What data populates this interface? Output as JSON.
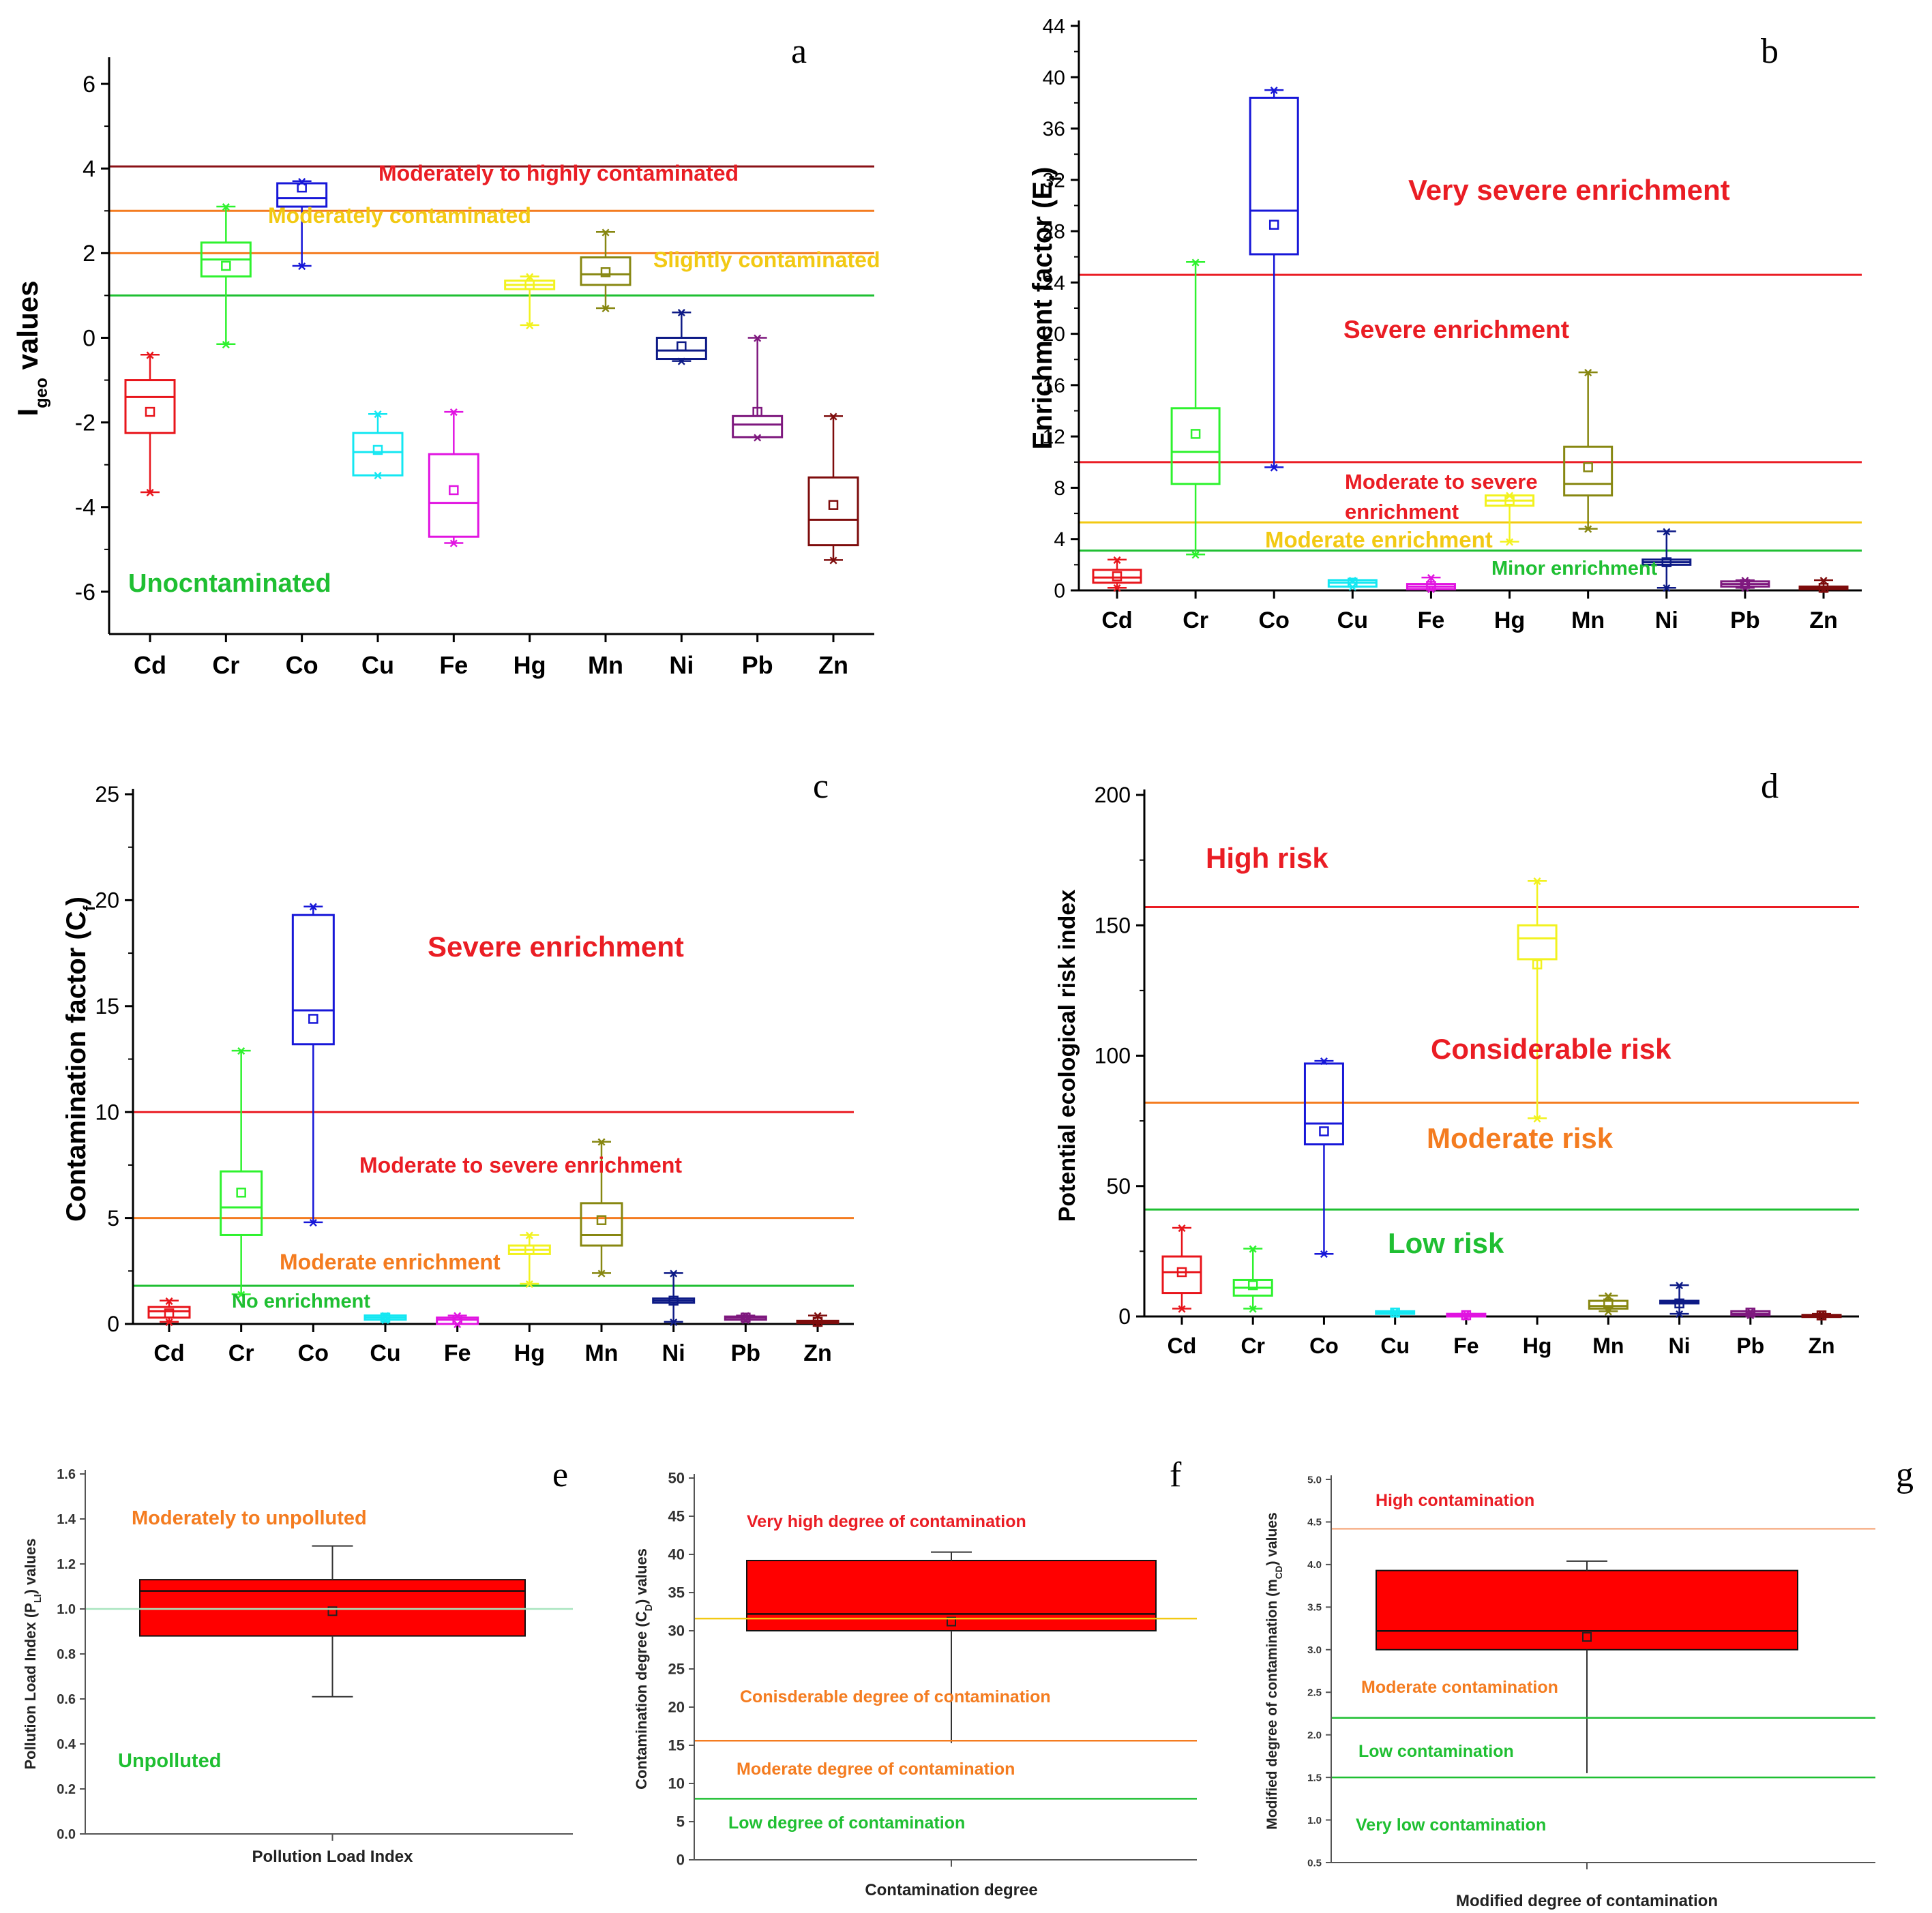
{
  "metals": [
    "Cd",
    "Cr",
    "Co",
    "Cu",
    "Fe",
    "Hg",
    "Mn",
    "Ni",
    "Pb",
    "Zn"
  ],
  "colors": {
    "Cd": "#e8151b",
    "Cr": "#2ef22e",
    "Co": "#1717d8",
    "Cu": "#14e7f2",
    "Fe": "#e114e1",
    "Hg": "#f2f21e",
    "Mn": "#878711",
    "Ni": "#0d1a86",
    "Pb": "#7e187e",
    "Zn": "#7e0c0c",
    "red": "#ea1d24",
    "orange": "#f47c20",
    "yellow": "#f2c913",
    "green": "#1fbf32",
    "darkred": "#8a1116",
    "peach": "#f7b089"
  },
  "chart_data": [
    {
      "id": "a",
      "type": "box",
      "panel_label": "a",
      "ylabel_main": "I",
      "ylabel_sub": "geo",
      "ylabel_tail": " values",
      "ylim": [
        -7,
        6.5
      ],
      "yticks": [
        -6,
        -4,
        -2,
        0,
        2,
        4,
        6
      ],
      "ytick_labels": [
        "-6",
        "-4",
        "-2",
        "0",
        "2",
        "4",
        "6"
      ],
      "boxes": [
        {
          "cat": "Cd",
          "q1": -2.25,
          "median": -1.4,
          "q3": -1.0,
          "mean": -1.75,
          "min": -3.65,
          "max": -0.4
        },
        {
          "cat": "Cr",
          "q1": 1.45,
          "median": 1.85,
          "q3": 2.25,
          "mean": 1.7,
          "min": -0.15,
          "max": 3.1
        },
        {
          "cat": "Co",
          "q1": 3.1,
          "median": 3.3,
          "q3": 3.65,
          "mean": 3.55,
          "min": 1.7,
          "max": 3.7
        },
        {
          "cat": "Cu",
          "q1": -3.25,
          "median": -2.7,
          "q3": -2.25,
          "mean": -2.65,
          "min": -3.25,
          "max": -1.8
        },
        {
          "cat": "Fe",
          "q1": -4.7,
          "median": -3.9,
          "q3": -2.75,
          "mean": -3.6,
          "min": -4.85,
          "max": -1.75
        },
        {
          "cat": "Hg",
          "q1": 1.15,
          "median": 1.25,
          "q3": 1.35,
          "mean": 1.25,
          "min": 0.3,
          "max": 1.45
        },
        {
          "cat": "Mn",
          "q1": 1.25,
          "median": 1.5,
          "q3": 1.9,
          "mean": 1.55,
          "min": 0.7,
          "max": 2.5
        },
        {
          "cat": "Ni",
          "q1": -0.5,
          "median": -0.3,
          "q3": 0.0,
          "mean": -0.2,
          "min": -0.55,
          "max": 0.6
        },
        {
          "cat": "Pb",
          "q1": -2.35,
          "median": -2.05,
          "q3": -1.85,
          "mean": -1.75,
          "min": -2.35,
          "max": 0.0
        },
        {
          "cat": "Zn",
          "q1": -4.9,
          "median": -4.3,
          "q3": -3.3,
          "mean": -3.95,
          "min": -5.25,
          "max": -1.85
        }
      ],
      "thresholds": [
        {
          "value": 4.05,
          "color": "#8a1116"
        },
        {
          "value": 3.0,
          "color": "#f47c20"
        },
        {
          "value": 2.0,
          "color": "#f47c20"
        },
        {
          "value": 1.0,
          "color": "#1fbf32"
        }
      ],
      "annotations": [
        {
          "text": "Moderately to highly contaminated",
          "color": "#ea1d24"
        },
        {
          "text": "Moderately contaminated",
          "color": "#f2c913"
        },
        {
          "text": "Slightly contaminated",
          "color": "#f2c913"
        },
        {
          "text": "Unocntaminated",
          "color": "#1fbf32"
        }
      ]
    },
    {
      "id": "b",
      "type": "box",
      "panel_label": "b",
      "ylabel_main": "Enrichment factor (E",
      "ylabel_sub": "f",
      "ylabel_tail": ")",
      "ylim": [
        0,
        44
      ],
      "yticks": [
        0,
        4,
        8,
        12,
        16,
        20,
        24,
        28,
        32,
        36,
        40,
        44
      ],
      "ytick_labels": [
        "0",
        "4",
        "8",
        "12",
        "16",
        "20",
        "24",
        "28",
        "32",
        "36",
        "40",
        "44"
      ],
      "boxes": [
        {
          "cat": "Cd",
          "q1": 0.6,
          "median": 1.0,
          "q3": 1.6,
          "mean": 1.1,
          "min": 0.2,
          "max": 2.4
        },
        {
          "cat": "Cr",
          "q1": 8.3,
          "median": 10.8,
          "q3": 14.2,
          "mean": 12.2,
          "min": 2.8,
          "max": 25.6
        },
        {
          "cat": "Co",
          "q1": 26.2,
          "median": 29.6,
          "q3": 38.4,
          "mean": 28.5,
          "min": 9.6,
          "max": 39.0
        },
        {
          "cat": "Cu",
          "q1": 0.3,
          "median": 0.6,
          "q3": 0.8,
          "mean": 0.6,
          "min": 0.3,
          "max": 0.8
        },
        {
          "cat": "Fe",
          "q1": 0.1,
          "median": 0.3,
          "q3": 0.5,
          "mean": 0.35,
          "min": 0.1,
          "max": 1.0
        },
        {
          "cat": "Hg",
          "q1": 6.6,
          "median": 7.0,
          "q3": 7.4,
          "mean": 7.0,
          "min": 3.8,
          "max": 7.4
        },
        {
          "cat": "Mn",
          "q1": 7.4,
          "median": 8.3,
          "q3": 11.2,
          "mean": 9.6,
          "min": 4.8,
          "max": 17.0
        },
        {
          "cat": "Ni",
          "q1": 2.0,
          "median": 2.2,
          "q3": 2.4,
          "mean": 2.2,
          "min": 0.2,
          "max": 4.6
        },
        {
          "cat": "Pb",
          "q1": 0.3,
          "median": 0.5,
          "q3": 0.7,
          "mean": 0.5,
          "min": 0.2,
          "max": 0.8
        },
        {
          "cat": "Zn",
          "q1": 0.1,
          "median": 0.2,
          "q3": 0.3,
          "mean": 0.2,
          "min": 0.1,
          "max": 0.8
        }
      ],
      "thresholds": [
        {
          "value": 24.6,
          "color": "#ea1d24"
        },
        {
          "value": 10.0,
          "color": "#ea1d24"
        },
        {
          "value": 5.3,
          "color": "#f2c913"
        },
        {
          "value": 3.1,
          "color": "#1fbf32"
        }
      ],
      "annotations": [
        {
          "text": "Very severe enrichment",
          "color": "#ea1d24"
        },
        {
          "text": "Severe enrichment",
          "color": "#ea1d24"
        },
        {
          "text": "Moderate to severe",
          "color": "#ea1d24"
        },
        {
          "text": "enrichment",
          "color": "#ea1d24"
        },
        {
          "text": "Moderate enrichment",
          "color": "#f2c913"
        },
        {
          "text": "Minor enrichment",
          "color": "#1fbf32"
        }
      ]
    },
    {
      "id": "c",
      "type": "box",
      "panel_label": "c",
      "ylabel_main": "Contamination factor (C",
      "ylabel_sub": "f",
      "ylabel_tail": ")",
      "ylim": [
        0,
        25
      ],
      "yticks": [
        0,
        5,
        10,
        15,
        20,
        25
      ],
      "ytick_labels": [
        "0",
        "5",
        "10",
        "15",
        "20",
        "25"
      ],
      "boxes": [
        {
          "cat": "Cd",
          "q1": 0.3,
          "median": 0.6,
          "q3": 0.8,
          "mean": 0.5,
          "min": 0.1,
          "max": 1.1
        },
        {
          "cat": "Cr",
          "q1": 4.2,
          "median": 5.5,
          "q3": 7.2,
          "mean": 6.2,
          "min": 1.4,
          "max": 12.9
        },
        {
          "cat": "Co",
          "q1": 13.2,
          "median": 14.8,
          "q3": 19.3,
          "mean": 14.4,
          "min": 4.8,
          "max": 19.7
        },
        {
          "cat": "Cu",
          "q1": 0.2,
          "median": 0.3,
          "q3": 0.4,
          "mean": 0.3,
          "min": 0.2,
          "max": 0.4
        },
        {
          "cat": "Fe",
          "q1": 0.0,
          "median": 0.2,
          "q3": 0.3,
          "mean": 0.2,
          "min": 0.0,
          "max": 0.4
        },
        {
          "cat": "Hg",
          "q1": 3.3,
          "median": 3.5,
          "q3": 3.7,
          "mean": 3.5,
          "min": 1.9,
          "max": 4.2
        },
        {
          "cat": "Mn",
          "q1": 3.7,
          "median": 4.2,
          "q3": 5.7,
          "mean": 4.9,
          "min": 2.4,
          "max": 8.6
        },
        {
          "cat": "Ni",
          "q1": 1.0,
          "median": 1.1,
          "q3": 1.2,
          "mean": 1.1,
          "min": 0.1,
          "max": 2.4
        },
        {
          "cat": "Pb",
          "q1": 0.2,
          "median": 0.3,
          "q3": 0.35,
          "mean": 0.3,
          "min": 0.2,
          "max": 0.4
        },
        {
          "cat": "Zn",
          "q1": 0.05,
          "median": 0.1,
          "q3": 0.15,
          "mean": 0.1,
          "min": 0.05,
          "max": 0.4
        }
      ],
      "thresholds": [
        {
          "value": 10.0,
          "color": "#ea1d24"
        },
        {
          "value": 5.0,
          "color": "#f47c20"
        },
        {
          "value": 1.8,
          "color": "#1fbf32"
        }
      ],
      "annotations": [
        {
          "text": "Severe enrichment",
          "color": "#ea1d24"
        },
        {
          "text": "Moderate to severe enrichment",
          "color": "#ea1d24"
        },
        {
          "text": "Moderate enrichment",
          "color": "#f47c20"
        },
        {
          "text": "No enrichment",
          "color": "#1fbf32"
        }
      ]
    },
    {
      "id": "d",
      "type": "box",
      "panel_label": "d",
      "ylabel_main": "Potential ecological risk index",
      "ylabel_sub": "",
      "ylabel_tail": "",
      "ylim": [
        0,
        200
      ],
      "yticks": [
        0,
        50,
        100,
        150,
        200
      ],
      "ytick_labels": [
        "0",
        "50",
        "100",
        "150",
        "200"
      ],
      "boxes": [
        {
          "cat": "Cd",
          "q1": 9,
          "median": 17,
          "q3": 23,
          "mean": 17,
          "min": 3,
          "max": 34
        },
        {
          "cat": "Cr",
          "q1": 8,
          "median": 11,
          "q3": 14,
          "mean": 12,
          "min": 3,
          "max": 26
        },
        {
          "cat": "Co",
          "q1": 66,
          "median": 74,
          "q3": 97,
          "mean": 71,
          "min": 24,
          "max": 98
        },
        {
          "cat": "Cu",
          "q1": 1,
          "median": 1.5,
          "q3": 2,
          "mean": 1.5,
          "min": 1,
          "max": 2
        },
        {
          "cat": "Fe",
          "q1": 0,
          "median": 0.5,
          "q3": 1,
          "mean": 0.5,
          "min": 0,
          "max": 1
        },
        {
          "cat": "Hg",
          "q1": 137,
          "median": 145,
          "q3": 150,
          "mean": 135,
          "min": 76,
          "max": 167
        },
        {
          "cat": "Mn",
          "q1": 3,
          "median": 4,
          "q3": 6,
          "mean": 5,
          "min": 2,
          "max": 8
        },
        {
          "cat": "Ni",
          "q1": 5,
          "median": 5.5,
          "q3": 6,
          "mean": 5,
          "min": 1,
          "max": 12
        },
        {
          "cat": "Pb",
          "q1": 0.5,
          "median": 1,
          "q3": 2,
          "mean": 1.5,
          "min": 0.5,
          "max": 2
        },
        {
          "cat": "Zn",
          "q1": 0.2,
          "median": 0.4,
          "q3": 0.6,
          "mean": 0.4,
          "min": 0.2,
          "max": 1
        }
      ],
      "thresholds": [
        {
          "value": 157,
          "color": "#ea1d24"
        },
        {
          "value": 82,
          "color": "#f47c20"
        },
        {
          "value": 41,
          "color": "#1fbf32"
        }
      ],
      "annotations": [
        {
          "text": "High risk",
          "color": "#ea1d24"
        },
        {
          "text": "Considerable risk",
          "color": "#ea1d24"
        },
        {
          "text": "Moderate risk",
          "color": "#f47c20"
        },
        {
          "text": "Low risk",
          "color": "#1fbf32"
        }
      ]
    },
    {
      "id": "e",
      "type": "box",
      "panel_label": "e",
      "xlabel": "Pollution Load Index",
      "ylabel_main": "Pollution Load Index (P",
      "ylabel_sub": "LI",
      "ylabel_tail": ") values",
      "ylim": [
        0,
        1.6
      ],
      "yticks": [
        0,
        0.2,
        0.4,
        0.6,
        0.8,
        1.0,
        1.2,
        1.4,
        1.6
      ],
      "ytick_labels": [
        "0.0",
        "0.2",
        "0.4",
        "0.6",
        "0.8",
        "1.0",
        "1.2",
        "1.4",
        "1.6"
      ],
      "box": {
        "q1": 0.88,
        "median": 1.08,
        "q3": 1.13,
        "mean": 0.99,
        "min": 0.61,
        "max": 1.28
      },
      "thresholds": [
        {
          "value": 1.0,
          "color": "#a9e5bf"
        }
      ],
      "annotations": [
        {
          "text": "Moderately to unpolluted",
          "color": "#f47c20"
        },
        {
          "text": "Unpolluted",
          "color": "#1fbf32"
        }
      ]
    },
    {
      "id": "f",
      "type": "box",
      "panel_label": "f",
      "xlabel": "Contamination degree",
      "ylabel_main": "Contamination degree (C",
      "ylabel_sub": "D",
      "ylabel_tail": ") values",
      "ylim": [
        0,
        50
      ],
      "yticks": [
        0,
        5,
        10,
        15,
        20,
        25,
        30,
        35,
        40,
        45,
        50
      ],
      "ytick_labels": [
        "0",
        "5",
        "10",
        "15",
        "20",
        "25",
        "30",
        "35",
        "40",
        "45",
        "50"
      ],
      "box": {
        "q1": 30.0,
        "median": 32.2,
        "q3": 39.2,
        "mean": 31.2,
        "min": 15.3,
        "max": 40.3
      },
      "thresholds": [
        {
          "value": 31.6,
          "color": "#f2c913"
        },
        {
          "value": 15.6,
          "color": "#f47c20"
        },
        {
          "value": 8.0,
          "color": "#1fbf32"
        }
      ],
      "annotations": [
        {
          "text": "Very high degree of contamination",
          "color": "#ea1d24"
        },
        {
          "text": "Conisderable degree of contamination",
          "color": "#f47c20"
        },
        {
          "text": "Moderate degree of contamination",
          "color": "#f47c20"
        },
        {
          "text": "Low degree of contamination",
          "color": "#1fbf32"
        }
      ]
    },
    {
      "id": "g",
      "type": "box",
      "panel_label": "g",
      "xlabel": "Modified degree of contamination",
      "ylabel_main": "Modified degree of contamination (m",
      "ylabel_sub": "CD",
      "ylabel_tail": ") values",
      "ylim": [
        0.5,
        5.0
      ],
      "yticks": [
        0.5,
        1.0,
        1.5,
        2.0,
        2.5,
        3.0,
        3.5,
        4.0,
        4.5,
        5.0
      ],
      "ytick_labels": [
        "0.5",
        "1.0",
        "1.5",
        "2.0",
        "2.5",
        "3.0",
        "3.5",
        "4.0",
        "4.5",
        "5.0"
      ],
      "box": {
        "q1": 3.0,
        "median": 3.22,
        "q3": 3.93,
        "mean": 3.15,
        "min": 1.55,
        "max": 4.04
      },
      "thresholds": [
        {
          "value": 4.42,
          "color": "#f7b089"
        },
        {
          "value": 2.2,
          "color": "#1fbf32"
        },
        {
          "value": 1.5,
          "color": "#1fbf32"
        }
      ],
      "annotations": [
        {
          "text": "High contamination",
          "color": "#ea1d24"
        },
        {
          "text": "Moderate contamination",
          "color": "#f47c20"
        },
        {
          "text": "Low contamination",
          "color": "#1fbf32"
        },
        {
          "text": "Very low contamination",
          "color": "#1fbf32"
        }
      ]
    }
  ]
}
